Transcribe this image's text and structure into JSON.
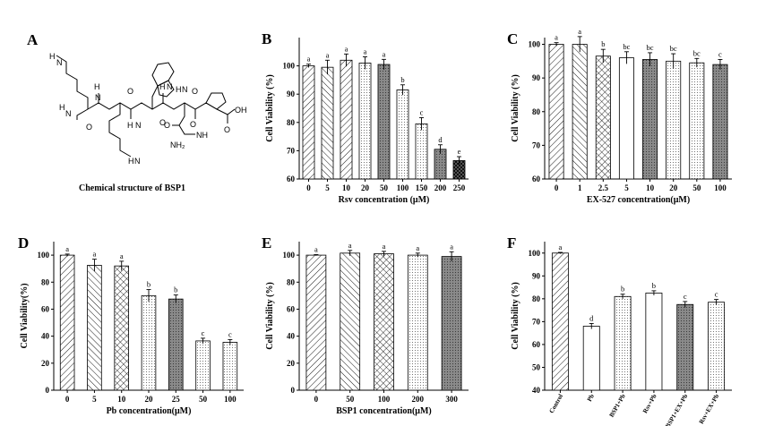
{
  "panelA": {
    "label": "A",
    "caption": "Chemical structure of BSP1",
    "atoms": [
      "H",
      "N",
      "H",
      "N",
      "H",
      "N",
      "H",
      "N",
      "H",
      "N",
      "H",
      "N",
      "H",
      "N",
      "O",
      "O",
      "O",
      "O",
      "O",
      "O",
      "O",
      "OH",
      "NH",
      "NH₂"
    ]
  },
  "chart_data": [
    {
      "panel": "B",
      "type": "bar",
      "categories": [
        "0",
        "5",
        "10",
        "20",
        "50",
        "100",
        "150",
        "200",
        "250"
      ],
      "values": [
        100,
        99.5,
        102,
        101,
        100.5,
        91.5,
        79.5,
        70.5,
        66.5
      ],
      "errors": [
        0.6,
        2.5,
        2.2,
        2.2,
        1.8,
        1.8,
        2.2,
        1.6,
        1.4
      ],
      "letters": [
        "a",
        "a",
        "a",
        "a",
        "a",
        "b",
        "c",
        "d",
        "e"
      ],
      "patterns": [
        "diag",
        "diag2",
        "diag",
        "dots",
        "dark",
        "dots",
        "dots",
        "dark",
        "check"
      ],
      "ylabel": "Cell Viability (%)",
      "xlabel": "Rsv concentration (μM)",
      "ylim": [
        60,
        110
      ],
      "yticks": [
        "60",
        "70",
        "80",
        "90",
        "100"
      ],
      "tickvals": [
        60,
        70,
        80,
        90,
        100
      ],
      "label": "B"
    },
    {
      "panel": "C",
      "type": "bar",
      "categories": [
        "0",
        "1",
        "2.5",
        "5",
        "10",
        "20",
        "50",
        "100"
      ],
      "values": [
        100,
        100,
        96.5,
        96,
        95.5,
        95,
        94.5,
        94
      ],
      "errors": [
        0.5,
        2.3,
        2.0,
        1.8,
        2.0,
        2.2,
        1.3,
        1.5
      ],
      "letters": [
        "a",
        "a",
        "b",
        "bc",
        "bc",
        "bc",
        "bc",
        "c"
      ],
      "patterns": [
        "diag",
        "diag2",
        "cross",
        "empty",
        "dark",
        "dots",
        "dots",
        "dark"
      ],
      "ylabel": "Cell Viability (%)",
      "xlabel": "EX-527 concentration(μM)",
      "ylim": [
        60,
        102
      ],
      "yticks": [
        "60",
        "70",
        "80",
        "90",
        "100"
      ],
      "tickvals": [
        60,
        70,
        80,
        90,
        100
      ],
      "label": "C"
    },
    {
      "panel": "D",
      "type": "bar",
      "categories": [
        "0",
        "5",
        "10",
        "20",
        "25",
        "50",
        "100"
      ],
      "values": [
        100,
        92.5,
        92,
        70,
        67.5,
        36.5,
        35.5
      ],
      "errors": [
        0.8,
        4.5,
        3.5,
        4.5,
        3.0,
        2.0,
        2.0
      ],
      "letters": [
        "a",
        "a",
        "a",
        "b",
        "b",
        "c",
        "c"
      ],
      "patterns": [
        "diag",
        "diag2",
        "cross",
        "dots",
        "dark",
        "dots",
        "dots"
      ],
      "ylabel": "Cell Viability(%)",
      "xlabel": "Pb concentration(μM)",
      "ylim": [
        0,
        110
      ],
      "yticks": [
        "0",
        "20",
        "40",
        "60",
        "80",
        "100"
      ],
      "tickvals": [
        0,
        20,
        40,
        60,
        80,
        100
      ],
      "label": "D"
    },
    {
      "panel": "E",
      "type": "bar",
      "categories": [
        "0",
        "50",
        "100",
        "200",
        "300"
      ],
      "values": [
        100,
        101.5,
        101,
        100,
        99
      ],
      "errors": [
        0.4,
        2.0,
        1.8,
        1.5,
        3.5
      ],
      "letters": [
        "a",
        "a",
        "a",
        "a",
        "a"
      ],
      "patterns": [
        "diag",
        "diag2",
        "cross",
        "dots",
        "dark"
      ],
      "ylabel": "Cell Viability (%)",
      "xlabel": "BSP1 concentration(μM)",
      "ylim": [
        0,
        110
      ],
      "yticks": [
        "0",
        "20",
        "40",
        "60",
        "80",
        "100"
      ],
      "tickvals": [
        0,
        20,
        40,
        60,
        80,
        100
      ],
      "label": "E"
    },
    {
      "panel": "F",
      "type": "bar",
      "categories": [
        "Control",
        "Pb",
        "BSP1+Pb",
        "Rsv+Pb",
        "BSP1+EX+Pb",
        "Rsv+EX+Pb"
      ],
      "values": [
        100,
        68,
        81,
        82.5,
        77.5,
        78.5
      ],
      "errors": [
        0.3,
        1.2,
        1.0,
        1.0,
        1.3,
        1.2
      ],
      "letters": [
        "a",
        "d",
        "b",
        "b",
        "c",
        "c"
      ],
      "patterns": [
        "diag",
        "empty",
        "dots",
        "empty",
        "dark",
        "dots"
      ],
      "ylabel": "Cell Viability (%)",
      "xlabel": "",
      "ylim": [
        40,
        105
      ],
      "yticks": [
        "40",
        "50",
        "60",
        "70",
        "80",
        "90",
        "100"
      ],
      "tickvals": [
        40,
        50,
        60,
        70,
        80,
        90,
        100
      ],
      "label": "F"
    }
  ]
}
